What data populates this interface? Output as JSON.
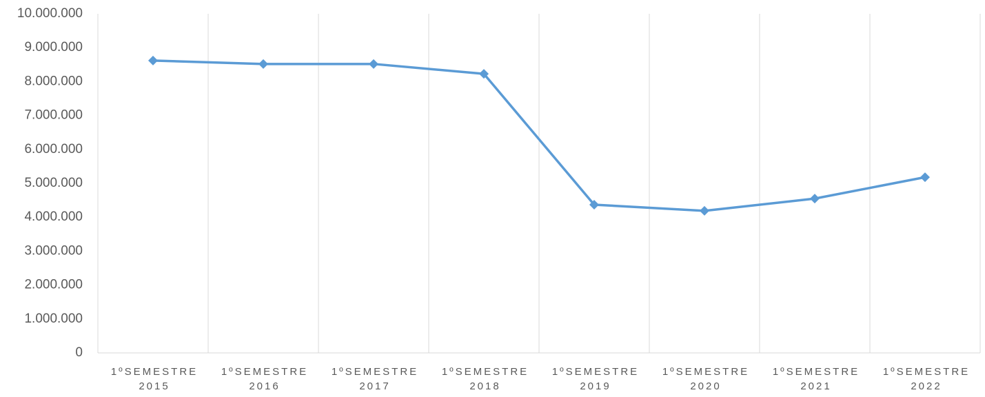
{
  "chart_data": {
    "type": "line",
    "categories": [
      "1ºSEMESTRE 2015",
      "1ºSEMESTRE 2016",
      "1ºSEMESTRE 2017",
      "1ºSEMESTRE 2018",
      "1ºSEMESTRE 2019",
      "1ºSEMESTRE 2020",
      "1ºSEMESTRE 2021",
      "1ºSEMESTRE 2022"
    ],
    "values": [
      8620000,
      8520000,
      8520000,
      8230000,
      4370000,
      4190000,
      4550000,
      5180000
    ],
    "color": "#5b9bd5",
    "ylim": [
      0,
      10000000
    ],
    "yticks": [
      0,
      {
        "value": 1000000,
        "label": "1.000.000"
      },
      {
        "value": 2000000,
        "label": "2.000.000"
      },
      {
        "value": 3000000,
        "label": "3.000.000"
      },
      {
        "value": 4000000,
        "label": "4.000.000"
      },
      {
        "value": 5000000,
        "label": "5.000.000"
      },
      {
        "value": 6000000,
        "label": "6.000.000"
      },
      {
        "value": 7000000,
        "label": "7.000.000"
      },
      {
        "value": 8000000,
        "label": "8.000.000"
      },
      {
        "value": 9000000,
        "label": "9.000.000"
      },
      {
        "value": 10000000,
        "label": "10.000.000"
      }
    ],
    "grid": false
  }
}
